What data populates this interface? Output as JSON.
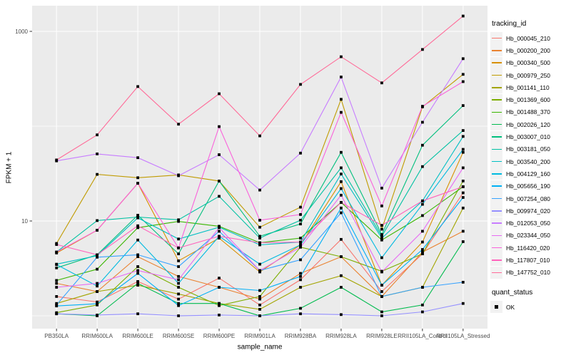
{
  "figure": {
    "xlabel": "sample_name",
    "ylabel": "FPKM + 1",
    "legend_title": "tracking_id",
    "quant_title": "quant_status",
    "quant_ok_label": "OK"
  },
  "colors": {
    "panel_bg": "#EBEBEB",
    "grid": "#FFFFFF",
    "axis_text": "#4D4D4D",
    "tick_mark": "#333333",
    "marker": "#000000"
  },
  "chart_data": {
    "type": "line",
    "title": "",
    "xlabel": "sample_name",
    "ylabel": "FPKM + 1",
    "y_scale": "log10",
    "ylim": [
      0.75,
      1900
    ],
    "y_axis_tick_labels": [
      "10",
      "1000"
    ],
    "y_axis_tick_values": [
      10,
      1000
    ],
    "y_gridline_values": [
      1,
      10,
      100,
      1000
    ],
    "grid": true,
    "legend_position": "right",
    "legend_title": "tracking_id",
    "point_marker": "filled-black-square",
    "quant_status_legend": {
      "title": "quant_status",
      "items": [
        "OK"
      ]
    },
    "categories": [
      "PB350LA",
      "RRIM600LA",
      "RRIM600LE",
      "RRIM600SE",
      "RRIM600PE",
      "RRIM901LA",
      "RRIM928BA",
      "RRIM928LA",
      "RRIM928LE",
      "RRII105LA_Control",
      "RRII105LA_Stressed"
    ],
    "series": [
      {
        "name": "Hb_000045_210",
        "color": "#F8766D",
        "values": [
          1.6,
          1.4,
          2.3,
          1.5,
          2.5,
          1.3,
          2.4,
          6.4,
          1.8,
          4.5,
          19.8
        ]
      },
      {
        "name": "Hb_000200_200",
        "color": "#EA8331",
        "values": [
          2.2,
          1.8,
          4.2,
          2.6,
          2.0,
          1.5,
          2.8,
          4.2,
          1.6,
          4.7,
          7.8
        ]
      },
      {
        "name": "Hb_000340_500",
        "color": "#D89000",
        "values": [
          4.6,
          8.0,
          25.0,
          3.8,
          6.6,
          2.9,
          5.6,
          26.0,
          2.1,
          6.0,
          53.0
        ]
      },
      {
        "name": "Hb_000979_250",
        "color": "#C09B00",
        "values": [
          5.8,
          31.0,
          28.6,
          30.6,
          26.4,
          8.6,
          14.0,
          192.0,
          8.2,
          160.0,
          352.0
        ]
      },
      {
        "name": "Hb_001141_110",
        "color": "#A3A500",
        "values": [
          1.35,
          1.8,
          2.1,
          1.7,
          1.35,
          1.17,
          2.0,
          2.65,
          1.6,
          2.0,
          13.7
        ]
      },
      {
        "name": "Hb_001369_600",
        "color": "#7CAE00",
        "values": [
          1.08,
          1.3,
          3.3,
          2.0,
          1.28,
          1.6,
          5.3,
          4.2,
          2.95,
          4.5,
          26.4
        ]
      },
      {
        "name": "Hb_001488_370",
        "color": "#39B600",
        "values": [
          2.36,
          3.1,
          8.5,
          9.9,
          8.8,
          5.9,
          6.6,
          15.7,
          6.3,
          11.4,
          23.0
        ]
      },
      {
        "name": "Hb_002026_120",
        "color": "#00BB4E",
        "values": [
          1.05,
          1.0,
          2.2,
          1.35,
          1.35,
          1.0,
          1.2,
          2.0,
          1.1,
          1.3,
          6.05
        ]
      },
      {
        "name": "Hb_003007_010",
        "color": "#00BF7D",
        "values": [
          3.2,
          4.4,
          11.5,
          4.5,
          26.4,
          6.9,
          9.3,
          53.0,
          7.2,
          63.0,
          165.0
        ]
      },
      {
        "name": "Hb_003181_050",
        "color": "#00C1A3",
        "values": [
          4.7,
          10.1,
          11.0,
          10.3,
          18.2,
          6.6,
          10.2,
          36.4,
          6.9,
          37.5,
          90.0
        ]
      },
      {
        "name": "Hb_003540_200",
        "color": "#00BFC4",
        "values": [
          3.5,
          4.3,
          10.8,
          6.45,
          8.6,
          5.6,
          6.0,
          31.3,
          6.6,
          16.3,
          78.0
        ]
      },
      {
        "name": "Hb_004129_160",
        "color": "#00BAE0",
        "values": [
          3.47,
          2.06,
          6.3,
          2.2,
          6.9,
          3.5,
          5.6,
          22.0,
          4.1,
          15.0,
          57.0
        ]
      },
      {
        "name": "Hb_005656_190",
        "color": "#00B0F6",
        "values": [
          1.27,
          1.34,
          2.8,
          1.28,
          2.0,
          1.85,
          2.6,
          13.7,
          2.1,
          5.0,
          17.7
        ]
      },
      {
        "name": "Hb_007254_080",
        "color": "#35A2FF",
        "values": [
          1.3,
          4.15,
          4.4,
          3.3,
          7.8,
          3.0,
          3.9,
          12.2,
          1.6,
          2.0,
          2.26
        ]
      },
      {
        "name": "Hb_009974_020",
        "color": "#9590FF",
        "values": [
          1.05,
          1.02,
          1.05,
          1.0,
          1.02,
          1.0,
          1.05,
          1.03,
          1.0,
          1.1,
          1.35
        ]
      },
      {
        "name": "Hb_012053_050",
        "color": "#C77CFF",
        "values": [
          43.0,
          51.0,
          46.5,
          30.0,
          50.0,
          21.2,
          52.0,
          330.0,
          22.2,
          110.0,
          515.0
        ]
      },
      {
        "name": "Hb_023344_050",
        "color": "#E76BF3",
        "values": [
          2.0,
          2.2,
          3.0,
          2.4,
          8.5,
          3.0,
          5.3,
          18.7,
          2.9,
          7.8,
          36.4
        ]
      },
      {
        "name": "Hb_116420_020",
        "color": "#FA62DB",
        "values": [
          4.7,
          8.0,
          25.0,
          5.2,
          99.0,
          10.2,
          11.7,
          140.0,
          14.4,
          162.0,
          295.0
        ]
      },
      {
        "name": "Hb_117807_010",
        "color": "#FF62BC",
        "values": [
          5.65,
          4.4,
          8.9,
          5.2,
          6.9,
          5.9,
          6.0,
          15.7,
          9.0,
          16.3,
          23.0
        ]
      },
      {
        "name": "Hb_147752_010",
        "color": "#FF6A98",
        "values": [
          44.0,
          81.0,
          262.0,
          105.0,
          220.0,
          79.0,
          276.0,
          540.0,
          286.0,
          644.0,
          1450.0
        ]
      }
    ]
  }
}
